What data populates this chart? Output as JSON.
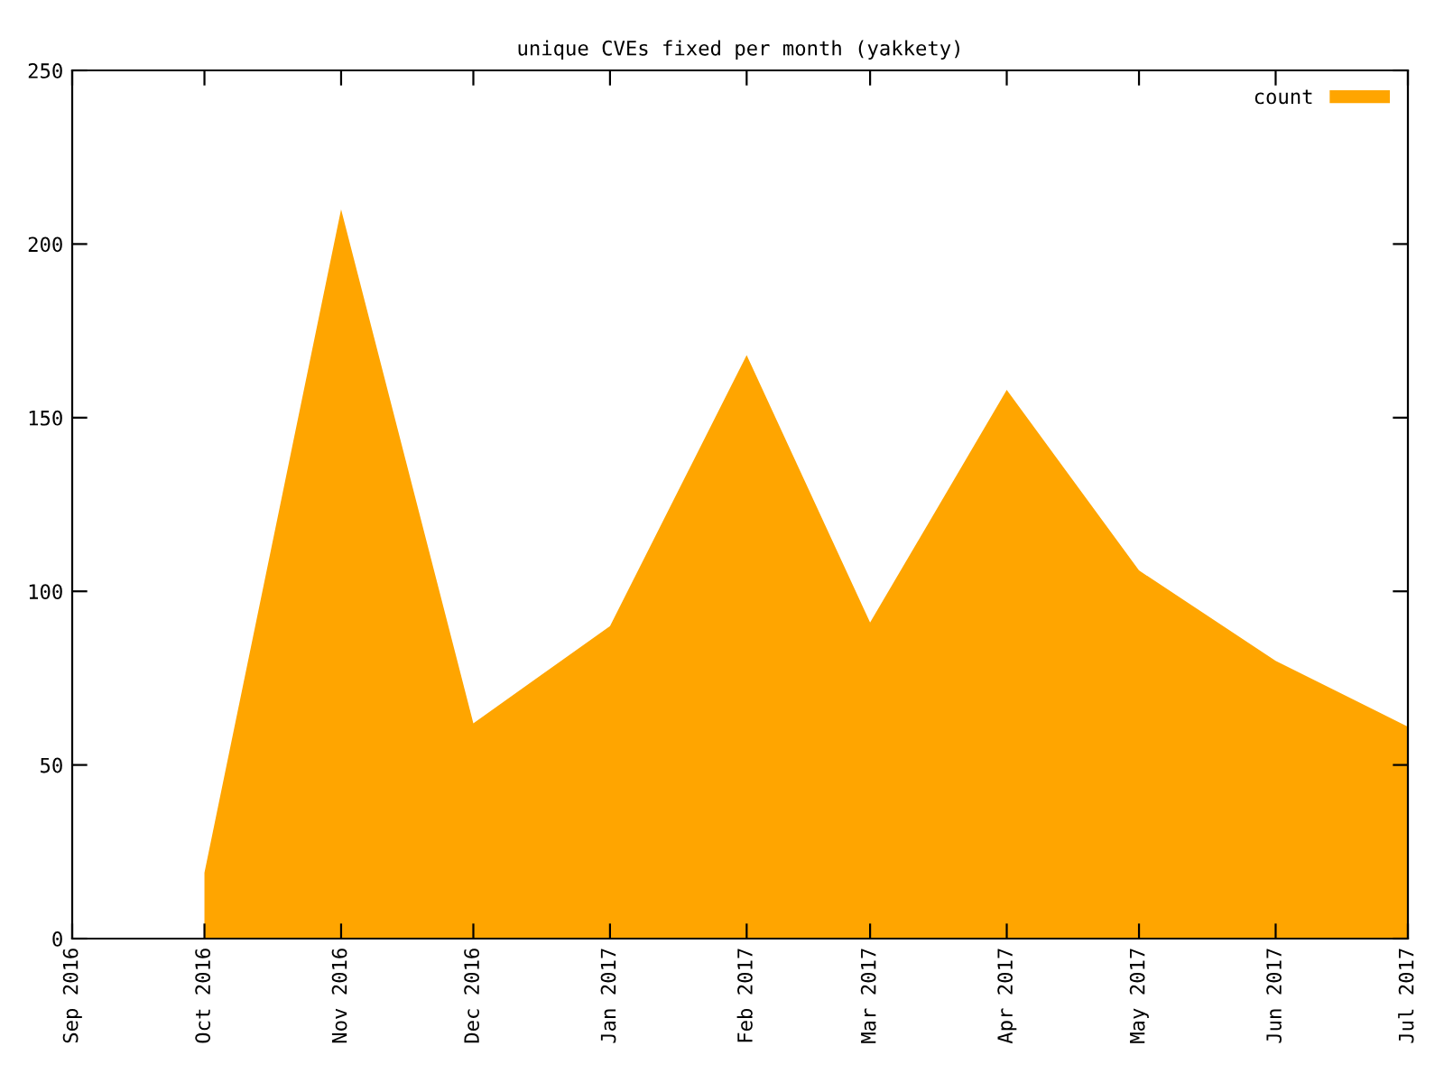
{
  "chart_data": {
    "type": "area",
    "title": "unique CVEs fixed per month (yakkety)",
    "x": [
      "2016-10",
      "2016-11",
      "2016-12",
      "2017-01",
      "2017-02",
      "2017-03",
      "2017-04",
      "2017-05",
      "2017-06",
      "2017-07"
    ],
    "series": [
      {
        "name": "count",
        "color": "#ffa500",
        "values": [
          19,
          210,
          62,
          90,
          168,
          91,
          158,
          106,
          80,
          61
        ]
      }
    ],
    "xlim": [
      "2016-09",
      "2017-07"
    ],
    "xticks": [
      {
        "value": "2016-09",
        "label": "Sep 2016"
      },
      {
        "value": "2016-10",
        "label": "Oct 2016"
      },
      {
        "value": "2016-11",
        "label": "Nov 2016"
      },
      {
        "value": "2016-12",
        "label": "Dec 2016"
      },
      {
        "value": "2017-01",
        "label": "Jan 2017"
      },
      {
        "value": "2017-02",
        "label": "Feb 2017"
      },
      {
        "value": "2017-03",
        "label": "Mar 2017"
      },
      {
        "value": "2017-04",
        "label": "Apr 2017"
      },
      {
        "value": "2017-05",
        "label": "May 2017"
      },
      {
        "value": "2017-06",
        "label": "Jun 2017"
      },
      {
        "value": "2017-07",
        "label": "Jul 2017"
      }
    ],
    "ylim": [
      0,
      250
    ],
    "yticks": [
      0,
      50,
      100,
      150,
      200,
      250
    ],
    "grid": false,
    "legend": "top right"
  }
}
